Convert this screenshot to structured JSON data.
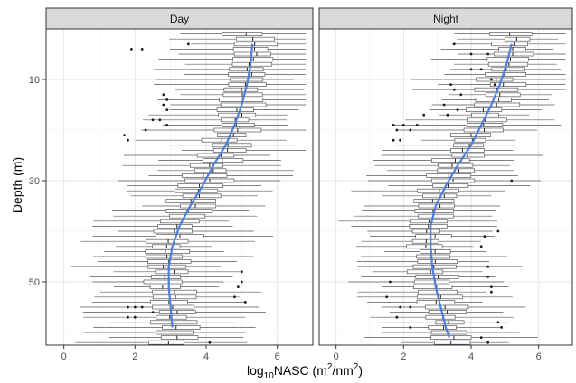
{
  "chart_data": {
    "type": "boxplot",
    "facets": [
      {
        "label": "Day",
        "trend": [
          [
            5.3,
            3
          ],
          [
            5.25,
            7
          ],
          [
            5.15,
            11
          ],
          [
            5.0,
            15
          ],
          [
            4.8,
            19
          ],
          [
            4.55,
            23
          ],
          [
            4.2,
            27
          ],
          [
            3.9,
            31
          ],
          [
            3.55,
            35
          ],
          [
            3.25,
            39
          ],
          [
            3.05,
            43
          ],
          [
            2.95,
            47
          ],
          [
            2.95,
            51
          ],
          [
            3.0,
            55
          ],
          [
            3.05,
            59
          ]
        ],
        "outliers": [
          [
            1.9,
            4
          ],
          [
            2.2,
            4
          ],
          [
            3.5,
            3
          ],
          [
            2.8,
            13
          ],
          [
            2.9,
            14
          ],
          [
            2.8,
            15
          ],
          [
            2.9,
            16
          ],
          [
            2.5,
            18
          ],
          [
            2.7,
            18
          ],
          [
            2.9,
            19
          ],
          [
            2.3,
            20
          ],
          [
            1.7,
            21
          ],
          [
            1.8,
            22
          ],
          [
            5.0,
            48
          ],
          [
            5.0,
            50
          ],
          [
            4.9,
            51
          ],
          [
            5.1,
            54
          ],
          [
            4.8,
            53
          ],
          [
            1.8,
            55
          ],
          [
            2.0,
            55
          ],
          [
            2.2,
            55
          ],
          [
            1.8,
            57
          ],
          [
            2.0,
            57
          ],
          [
            2.5,
            56
          ],
          [
            4.1,
            62
          ]
        ]
      },
      {
        "label": "Night",
        "trend": [
          [
            5.2,
            3
          ],
          [
            5.05,
            7
          ],
          [
            4.85,
            11
          ],
          [
            4.6,
            15
          ],
          [
            4.3,
            19
          ],
          [
            4.0,
            23
          ],
          [
            3.6,
            27
          ],
          [
            3.25,
            31
          ],
          [
            2.95,
            35
          ],
          [
            2.8,
            39
          ],
          [
            2.8,
            43
          ],
          [
            2.85,
            47
          ],
          [
            2.95,
            51
          ],
          [
            3.1,
            55
          ],
          [
            3.25,
            59
          ],
          [
            3.35,
            61
          ]
        ],
        "outliers": [
          [
            3.5,
            3
          ],
          [
            4.0,
            5
          ],
          [
            4.5,
            5
          ],
          [
            4.3,
            8
          ],
          [
            4.0,
            8
          ],
          [
            4.6,
            10
          ],
          [
            4.7,
            11
          ],
          [
            3.4,
            11
          ],
          [
            3.5,
            12
          ],
          [
            3.7,
            13
          ],
          [
            3.2,
            15
          ],
          [
            3.3,
            17
          ],
          [
            3.6,
            16
          ],
          [
            1.7,
            19
          ],
          [
            2.0,
            19
          ],
          [
            2.2,
            20
          ],
          [
            2.4,
            19
          ],
          [
            1.8,
            20
          ],
          [
            1.7,
            22
          ],
          [
            1.9,
            22
          ],
          [
            2.6,
            17
          ],
          [
            5.2,
            30
          ],
          [
            4.8,
            40
          ],
          [
            4.4,
            41
          ],
          [
            4.3,
            43
          ],
          [
            4.5,
            47
          ],
          [
            4.5,
            49
          ],
          [
            4.6,
            51
          ],
          [
            4.6,
            52
          ],
          [
            1.6,
            50
          ],
          [
            1.5,
            53
          ],
          [
            1.9,
            55
          ],
          [
            2.2,
            55
          ],
          [
            1.8,
            57
          ],
          [
            2.2,
            59
          ],
          [
            4.9,
            59
          ],
          [
            4.8,
            58
          ],
          [
            4.3,
            61
          ],
          [
            4.5,
            62
          ]
        ]
      }
    ],
    "xlabel": {
      "base": "log",
      "sub": "10",
      "mid": "NASC (m",
      "sup1": "2",
      "slash": "/nm",
      "sup2": "2",
      "end": ")"
    },
    "ylabel": "Depth (m)",
    "xlim": [
      -0.5,
      7
    ],
    "ylim": [
      62.5,
      0
    ],
    "y_reversed": true,
    "xticks": [
      "0",
      "2",
      "4",
      "6"
    ],
    "xtick_values": [
      0,
      2,
      4,
      6
    ],
    "yticks": [
      "10",
      "30",
      "50"
    ],
    "ytick_values": [
      10,
      30,
      50
    ],
    "depth_range": [
      1,
      62
    ],
    "grid": true,
    "trend_color": "#4f7ed8",
    "box_color": "#595959",
    "panel_bg": "#ffffff",
    "strip_bg": "#d9d9d9"
  }
}
